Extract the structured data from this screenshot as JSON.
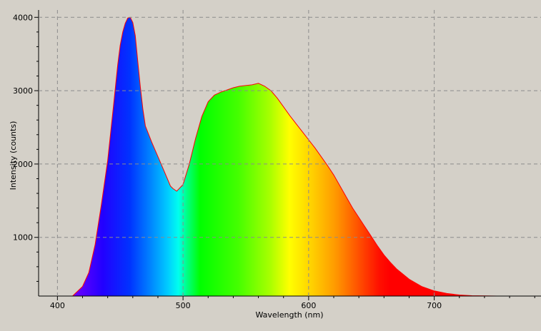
{
  "chart_data": {
    "type": "area",
    "title": "",
    "xlabel": "Wavelength (nm)",
    "ylabel": "Intensity (counts)",
    "xlim": [
      385,
      785
    ],
    "ylim": [
      200,
      4100
    ],
    "xticks": [
      400,
      500,
      600,
      700
    ],
    "yticks": [
      1000,
      2000,
      3000,
      4000
    ],
    "grid": true,
    "legend": "none",
    "colors": {
      "background": "#d4d0c8",
      "plot_background": "#d4d0c8",
      "outline": "#ff0000",
      "grid": "#8c8c8c",
      "axis": "#000000"
    },
    "fill": "visible-spectrum gradient by wavelength",
    "series": [
      {
        "x": [
          412,
          420,
          425,
          430,
          435,
          440,
          445,
          448,
          450,
          452,
          454,
          456,
          458,
          460,
          462,
          464,
          466,
          468,
          470,
          475,
          480,
          485,
          488,
          490,
          492,
          495,
          500,
          505,
          510,
          515,
          520,
          525,
          530,
          535,
          540,
          545,
          550,
          555,
          560,
          565,
          570,
          575,
          580,
          585,
          590,
          595,
          600,
          605,
          610,
          615,
          620,
          625,
          630,
          635,
          640,
          645,
          650,
          655,
          660,
          665,
          670,
          680,
          690,
          700,
          710,
          720,
          730,
          740,
          750,
          760
        ],
        "values": [
          200,
          330,
          520,
          900,
          1450,
          2050,
          2850,
          3350,
          3620,
          3800,
          3920,
          3990,
          4000,
          3930,
          3750,
          3400,
          3050,
          2750,
          2520,
          2300,
          2100,
          1900,
          1780,
          1700,
          1665,
          1630,
          1720,
          2000,
          2350,
          2650,
          2850,
          2940,
          2980,
          3010,
          3040,
          3060,
          3070,
          3080,
          3100,
          3060,
          3000,
          2900,
          2780,
          2660,
          2550,
          2440,
          2330,
          2220,
          2100,
          1980,
          1850,
          1700,
          1550,
          1400,
          1270,
          1140,
          1010,
          880,
          760,
          660,
          570,
          430,
          330,
          270,
          235,
          215,
          205,
          202,
          200,
          200
        ]
      }
    ]
  }
}
